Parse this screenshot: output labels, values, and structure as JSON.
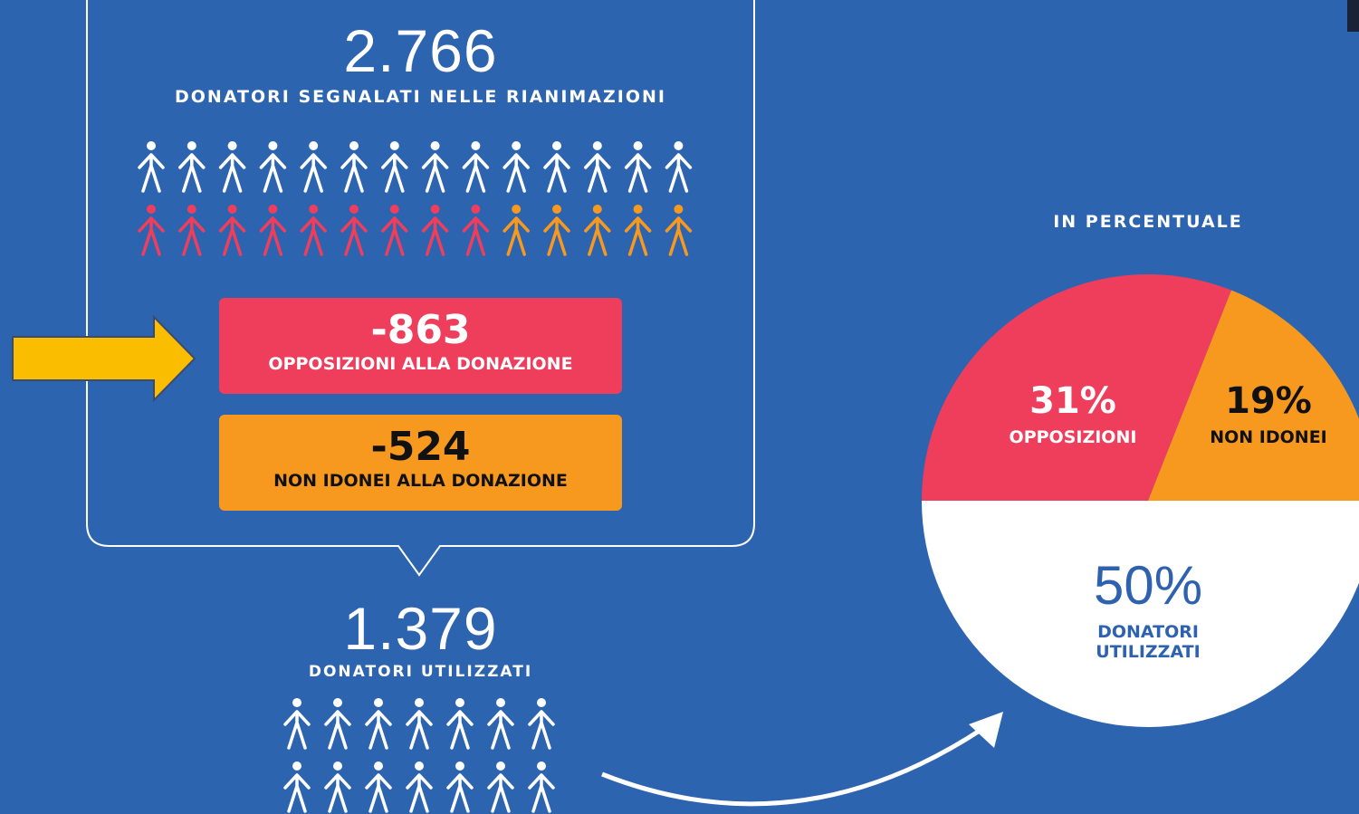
{
  "summary": {
    "total": "2.766",
    "total_label": "DONATORI SEGNALATI NELLE RIANIMAZIONI"
  },
  "boxes": [
    {
      "value": "-863",
      "label": "OPPOSIZIONI ALLA DONAZIONE"
    },
    {
      "value": "-524",
      "label": "NON IDONEI ALLA DONAZIONE"
    }
  ],
  "result": {
    "total": "1.379",
    "total_label": "DONATORI UTILIZZATI"
  },
  "chart_data": {
    "type": "pie",
    "title": "IN PERCENTUALE",
    "categories": [
      "OPPOSIZIONI",
      "NON IDONEI",
      "DONATORI UTILIZZATI"
    ],
    "values": [
      31,
      19,
      50
    ],
    "value_labels": [
      "31%",
      "19%",
      "50%"
    ],
    "colors": [
      "#ef3e5c",
      "#f7991f",
      "#ffffff"
    ]
  }
}
